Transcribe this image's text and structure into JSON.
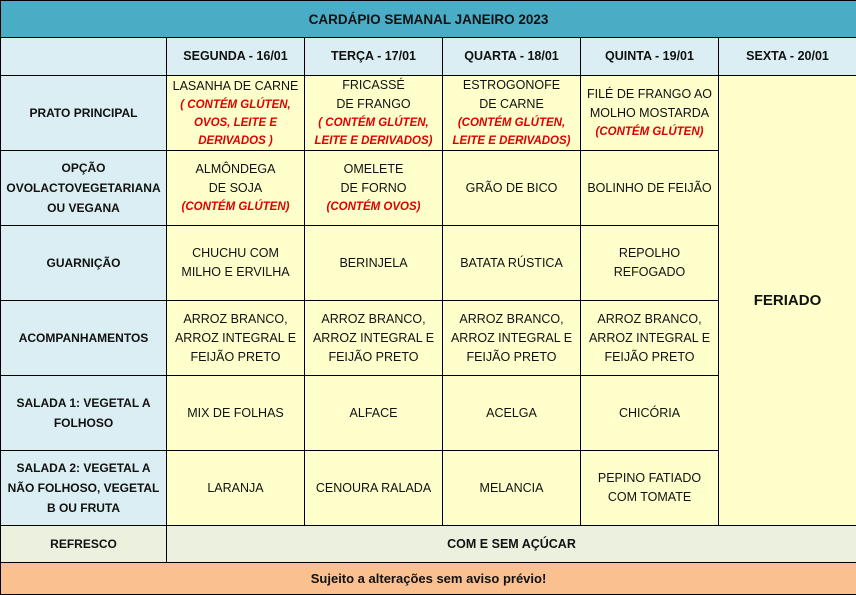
{
  "title": "CARDÁPIO SEMANAL JANEIRO 2023",
  "days": [
    "SEGUNDA - 16/01",
    "TERÇA - 17/01",
    "QUARTA - 18/01",
    "QUINTA - 19/01",
    "SEXTA - 20/01"
  ],
  "holiday_label": "FERIADO",
  "rows": [
    {
      "label": [
        "PRATO PRINCIPAL"
      ],
      "cells": [
        {
          "lines": [
            "LASANHA DE CARNE"
          ],
          "note": [
            "( CONTÉM GLÚTEN,",
            "OVOS, LEITE E",
            "DERIVADOS )"
          ]
        },
        {
          "lines": [
            "FRICASSÉ",
            "DE FRANGO"
          ],
          "note": [
            "( CONTÉM GLÚTEN,",
            "LEITE E DERIVADOS)"
          ]
        },
        {
          "lines": [
            "ESTROGONOFE",
            "DE CARNE"
          ],
          "note": [
            "(CONTÉM GLÚTEN,",
            "LEITE E DERIVADOS)"
          ]
        },
        {
          "lines": [
            "FILÉ DE FRANGO AO",
            "MOLHO MOSTARDA"
          ],
          "note": [
            "(CONTÉM GLÚTEN)"
          ]
        }
      ]
    },
    {
      "label": [
        "OPÇÃO",
        "OVOLACTOVEGETARIANA",
        "OU VEGANA"
      ],
      "cells": [
        {
          "lines": [
            "ALMÔNDEGA",
            "DE SOJA"
          ],
          "note": [
            "(CONTÉM GLÚTEN)"
          ]
        },
        {
          "lines": [
            "OMELETE",
            "DE FORNO"
          ],
          "note": [
            "(CONTÉM OVOS)"
          ]
        },
        {
          "lines": [
            "GRÃO DE BICO"
          ],
          "note": []
        },
        {
          "lines": [
            "BOLINHO DE FEIJÃO"
          ],
          "note": []
        }
      ]
    },
    {
      "label": [
        "GUARNIÇÃO"
      ],
      "cells": [
        {
          "lines": [
            "CHUCHU COM",
            "MILHO E ERVILHA"
          ],
          "note": []
        },
        {
          "lines": [
            "BERINJELA"
          ],
          "note": []
        },
        {
          "lines": [
            "BATATA RÚSTICA"
          ],
          "note": []
        },
        {
          "lines": [
            "REPOLHO REFOGADO"
          ],
          "note": []
        }
      ]
    },
    {
      "label": [
        "ACOMPANHAMENTOS"
      ],
      "cells": [
        {
          "lines": [
            "ARROZ BRANCO,",
            "ARROZ INTEGRAL E",
            "FEIJÃO PRETO"
          ],
          "note": []
        },
        {
          "lines": [
            "ARROZ BRANCO,",
            "ARROZ INTEGRAL E",
            "FEIJÃO PRETO"
          ],
          "note": []
        },
        {
          "lines": [
            "ARROZ BRANCO,",
            "ARROZ INTEGRAL E",
            "FEIJÃO PRETO"
          ],
          "note": []
        },
        {
          "lines": [
            "ARROZ BRANCO,",
            "ARROZ INTEGRAL E",
            "FEIJÃO PRETO"
          ],
          "note": []
        }
      ]
    },
    {
      "label": [
        "SALADA 1: VEGETAL A",
        "FOLHOSO"
      ],
      "cells": [
        {
          "lines": [
            "MIX DE FOLHAS"
          ],
          "note": []
        },
        {
          "lines": [
            "ALFACE"
          ],
          "note": []
        },
        {
          "lines": [
            "ACELGA"
          ],
          "note": []
        },
        {
          "lines": [
            "CHICÓRIA"
          ],
          "note": []
        }
      ]
    },
    {
      "label": [
        "SALADA 2: VEGETAL A",
        "NÃO FOLHOSO,   VEGETAL",
        "B OU FRUTA"
      ],
      "cells": [
        {
          "lines": [
            "LARANJA"
          ],
          "note": []
        },
        {
          "lines": [
            "CENOURA RALADA"
          ],
          "note": []
        },
        {
          "lines": [
            "MELANCIA"
          ],
          "note": []
        },
        {
          "lines": [
            "PEPINO FATIADO",
            "COM TOMATE"
          ],
          "note": []
        }
      ]
    }
  ],
  "refresco": {
    "label": "REFRESCO",
    "value": "COM E SEM AÇÚCAR"
  },
  "footer": "Sujeito a alterações sem aviso prévio!",
  "colors": {
    "title_bg": "#4bacc6",
    "label_bg": "#daeef3",
    "cell_bg": "#ffffcc",
    "refresco_bg": "#ebf1de",
    "footer_bg": "#fac090",
    "allergen_text": "#e00000"
  }
}
